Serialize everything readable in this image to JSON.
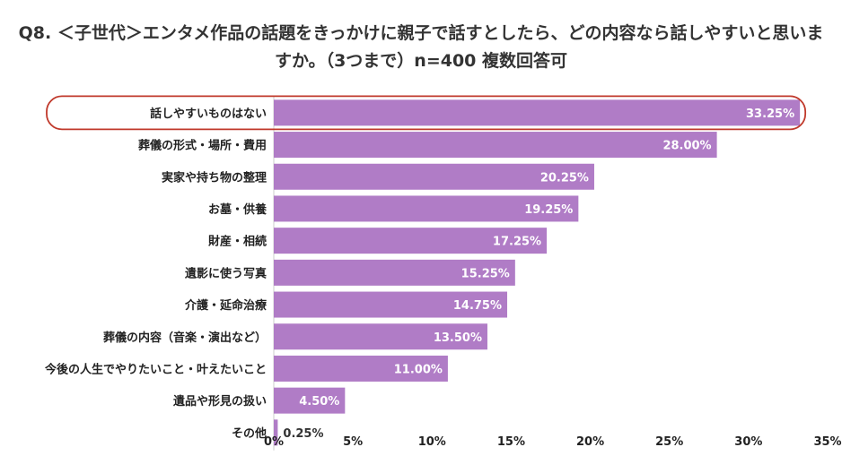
{
  "title": "Q8. ＜子世代＞エンタメ作品の話題をきっかけに親子で話すとしたら、どの内容なら話しやすいと思いますか。（3つまで）n=400 複数回答可",
  "chart_data": {
    "type": "bar",
    "orientation": "horizontal",
    "categories": [
      "話しやすいものはない",
      "葬儀の形式・場所・費用",
      "実家や持ち物の整理",
      "お墓・供養",
      "財産・相続",
      "遺影に使う写真",
      "介護・延命治療",
      "葬儀の内容（音楽・演出など）",
      "今後の人生でやりたいこと・叶えたいこと",
      "遺品や形見の扱い",
      "その他"
    ],
    "values": [
      33.25,
      28.0,
      20.25,
      19.25,
      17.25,
      15.25,
      14.75,
      13.5,
      11.0,
      4.5,
      0.25
    ],
    "value_labels": [
      "33.25%",
      "28.00%",
      "20.25%",
      "19.25%",
      "17.25%",
      "15.25%",
      "14.75%",
      "13.50%",
      "11.00%",
      "4.50%",
      "0.25%"
    ],
    "xlim": [
      0,
      35
    ],
    "x_ticks": [
      "0%",
      "5%",
      "10%",
      "15%",
      "20%",
      "25%",
      "30%",
      "35%"
    ],
    "highlight_index": 0,
    "grid": false,
    "legend": "none",
    "colors": {
      "bar": "#B07CC6",
      "highlight_outline": "#C0392B",
      "value_label_inside": "#ffffff",
      "axis": "#cccccc"
    }
  }
}
